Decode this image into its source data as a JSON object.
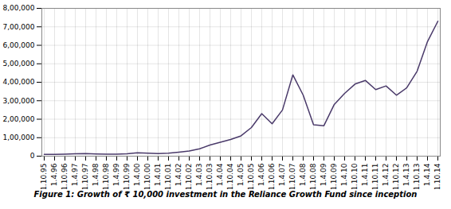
{
  "chart_data": {
    "type": "line",
    "title": "Figure 1: Growth of ₹ 10,000 investment in the Reliance Growth Fund since inception",
    "categories": [
      "1.10.95",
      "1.4.96",
      "1.10.96",
      "1.4.97",
      "1.10.97",
      "1.4.98",
      "1.10.98",
      "1.4.99",
      "1.10.99",
      "1.4.00",
      "1.10.00",
      "1.4.01",
      "1.10.01",
      "1.4.02",
      "1.10.02",
      "1.4.03",
      "1.10.03",
      "1.4.04",
      "1.10.04",
      "1.4.05",
      "1.10.05",
      "1.4.06",
      "1.10.06",
      "1.4.07",
      "1.10.07",
      "1.4.08",
      "1.10.08",
      "1.4.09",
      "1.10.09",
      "1.4.10",
      "1.10.10",
      "1.4.11",
      "1.10.11",
      "1.4.12",
      "1.10.12",
      "1.4.13",
      "1.10.13",
      "1.4.14",
      "1.10.14"
    ],
    "values": [
      10000,
      9800,
      11000,
      12500,
      14000,
      12000,
      11000,
      10500,
      13000,
      18000,
      16000,
      14000,
      16000,
      22000,
      28000,
      40000,
      60000,
      75000,
      90000,
      110000,
      155000,
      230000,
      175000,
      250000,
      440000,
      330000,
      170000,
      165000,
      280000,
      340000,
      390000,
      410000,
      360000,
      380000,
      330000,
      370000,
      460000,
      620000,
      730000
    ],
    "color": "#4a3a6a",
    "ylim": [
      0,
      800000
    ],
    "yticks": [
      0,
      {
        "value": 100000,
        "label": "1,00,000"
      },
      {
        "value": 200000,
        "label": "2,00,000"
      },
      {
        "value": 300000,
        "label": "3,00,000"
      },
      {
        "value": 400000,
        "label": "4,00,000"
      },
      {
        "value": 500000,
        "label": "5,00,000"
      },
      {
        "value": 600000,
        "label": "6,00,000"
      },
      {
        "value": 700000,
        "label": "7,00,000"
      },
      {
        "value": 800000,
        "label": "8,00,000"
      }
    ],
    "grid": true
  }
}
